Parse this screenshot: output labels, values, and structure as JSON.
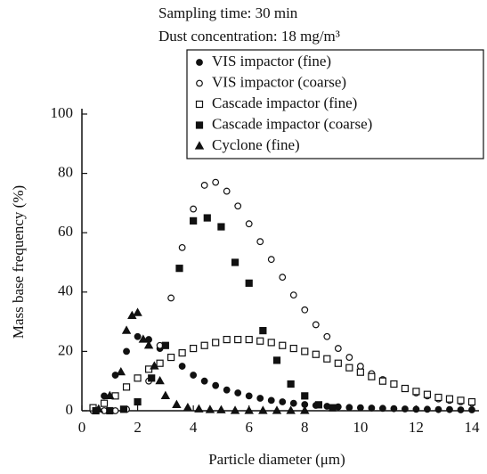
{
  "chart_data": {
    "type": "scatter",
    "annotations": [
      "Sampling time: 30 min",
      "Dust concentration: 18 mg/m³"
    ],
    "x_label": "Particle diameter (μm)",
    "y_label": "Mass base frequency (%)",
    "xlim": [
      0,
      14
    ],
    "xticks": [
      0,
      2,
      4,
      6,
      8,
      10,
      12,
      14
    ],
    "ylim": [
      0,
      100
    ],
    "yticks": [
      0,
      20,
      40,
      60,
      80,
      100
    ],
    "legend": "upper right",
    "series": [
      {
        "name": "VIS impactor (fine)",
        "marker": "filled-circle",
        "color": "#111",
        "x": [
          0.4,
          0.8,
          1.2,
          1.6,
          2.0,
          2.4,
          2.8,
          3.2,
          3.6,
          4.0,
          4.4,
          4.8,
          5.2,
          5.6,
          6.0,
          6.4,
          6.8,
          7.2,
          7.6,
          8.0,
          8.4,
          8.8,
          9.2,
          9.6,
          10.0,
          10.4,
          10.8,
          11.2,
          11.6,
          12.0,
          12.4,
          12.8,
          13.2,
          13.6,
          14.0
        ],
        "values": [
          1,
          5,
          12,
          20,
          25,
          24,
          21,
          18,
          15,
          12,
          10,
          8.5,
          7,
          6,
          5,
          4.2,
          3.5,
          3,
          2.5,
          2.1,
          1.8,
          1.5,
          1.3,
          1.1,
          1,
          0.9,
          0.8,
          0.7,
          0.6,
          0.5,
          0.5,
          0.4,
          0.4,
          0.3,
          0.3
        ]
      },
      {
        "name": "VIS impactor (coarse)",
        "marker": "open-circle",
        "color": "#111",
        "x": [
          0.4,
          0.8,
          1.2,
          1.6,
          2.0,
          2.4,
          2.8,
          3.2,
          3.6,
          4.0,
          4.4,
          4.8,
          5.2,
          5.6,
          6.0,
          6.4,
          6.8,
          7.2,
          7.6,
          8.0,
          8.4,
          8.8,
          9.2,
          9.6,
          10.0,
          10.4,
          10.8,
          11.2,
          11.6,
          12.0,
          12.4,
          12.8,
          13.2,
          13.6,
          14.0
        ],
        "values": [
          0,
          0,
          0,
          0.5,
          3,
          10,
          22,
          38,
          55,
          68,
          76,
          77,
          74,
          69,
          63,
          57,
          51,
          45,
          39,
          34,
          29,
          25,
          21,
          18,
          15,
          12.5,
          10.5,
          9,
          7.5,
          6,
          5,
          4,
          3.5,
          3,
          2.5
        ]
      },
      {
        "name": "Cascade impactor (fine)",
        "marker": "open-square",
        "color": "#111",
        "x": [
          0.4,
          0.8,
          1.2,
          1.6,
          2.0,
          2.4,
          2.8,
          3.2,
          3.6,
          4.0,
          4.4,
          4.8,
          5.2,
          5.6,
          6.0,
          6.4,
          6.8,
          7.2,
          7.6,
          8.0,
          8.4,
          8.8,
          9.2,
          9.6,
          10.0,
          10.4,
          10.8,
          11.2,
          11.6,
          12.0,
          12.4,
          12.8,
          13.2,
          13.6,
          14.0
        ],
        "values": [
          1,
          2.5,
          5,
          8,
          11,
          14,
          16,
          18,
          19.5,
          21,
          22,
          23,
          24,
          24,
          24,
          23.5,
          23,
          22,
          21,
          20,
          19,
          17.5,
          16,
          14.5,
          13,
          11.5,
          10,
          9,
          7.5,
          6.5,
          5.5,
          4.5,
          4,
          3.5,
          3
        ]
      },
      {
        "name": "Cascade impactor (coarse)",
        "marker": "filled-square",
        "color": "#111",
        "x": [
          0.5,
          1,
          1.5,
          2,
          2.5,
          3,
          3.5,
          4,
          4.5,
          5,
          5.5,
          6,
          6.5,
          7,
          7.5,
          8,
          8.5,
          9
        ],
        "values": [
          0,
          0,
          0.5,
          3,
          11,
          22,
          48,
          64,
          65,
          62,
          50,
          43,
          27,
          17,
          9,
          5,
          2,
          1
        ]
      },
      {
        "name": "Cyclone (fine)",
        "marker": "filled-triangle",
        "color": "#111",
        "x": [
          0.6,
          1.0,
          1.4,
          1.6,
          1.8,
          2.0,
          2.2,
          2.4,
          2.6,
          2.8,
          3.0,
          3.4,
          3.8,
          4.2,
          4.6,
          5,
          5.5,
          6,
          6.5,
          7,
          7.5,
          8
        ],
        "values": [
          0.5,
          5,
          13,
          27,
          32,
          33,
          24,
          22,
          15,
          10,
          5,
          2,
          1,
          0.5,
          0.3,
          0.2,
          0,
          0,
          0,
          0,
          0,
          0
        ]
      }
    ]
  }
}
